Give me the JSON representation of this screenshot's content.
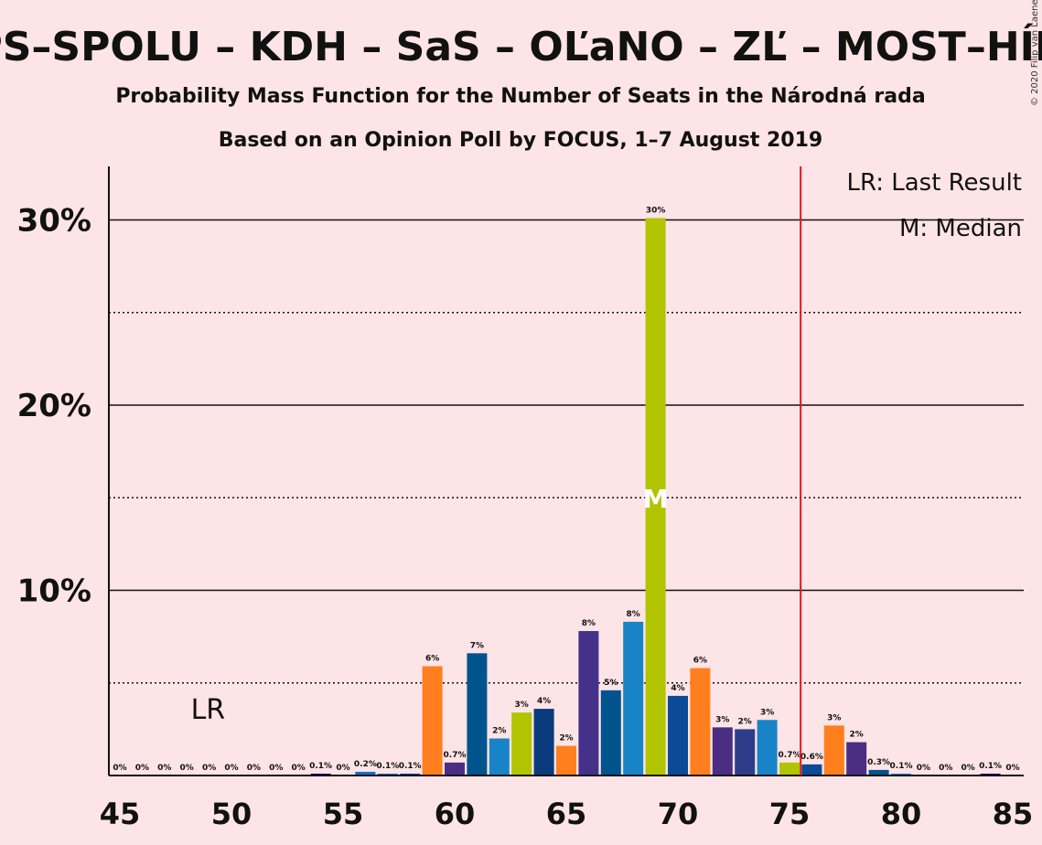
{
  "title": "PS–SPOLU – KDH – SaS – OĽaNO – ZĽ – MOST–HÍD",
  "subtitle1": "Probability Mass Function for the Number of Seats in the Národná rada",
  "subtitle2": "Based on an Opinion Poll by FOCUS, 1–7 August 2019",
  "copyright": "© 2020 Filip van Laenen",
  "legend": {
    "lr": "LR: Last Result",
    "median": "M: Median"
  },
  "lr_marker": "LR",
  "median_marker": "M",
  "chart_data": {
    "type": "bar",
    "x": [
      45,
      46,
      47,
      48,
      49,
      50,
      51,
      52,
      53,
      54,
      55,
      56,
      57,
      58,
      59,
      60,
      61,
      62,
      63,
      64,
      65,
      66,
      67,
      68,
      69,
      70,
      71,
      72,
      73,
      74,
      75,
      76,
      77,
      78,
      79,
      80,
      81,
      82,
      83,
      84,
      85
    ],
    "values": [
      0,
      0,
      0,
      0,
      0,
      0,
      0,
      0,
      0,
      0.1,
      0,
      0.2,
      0.1,
      0.1,
      5.9,
      0.7,
      6.6,
      2.0,
      3.4,
      3.6,
      1.6,
      7.8,
      4.6,
      8.3,
      30.1,
      4.3,
      5.8,
      2.6,
      2.5,
      3.0,
      0.7,
      0.6,
      2.7,
      1.8,
      0.3,
      0.1,
      0,
      0,
      0,
      0.1,
      0
    ],
    "labels": [
      "0%",
      "0%",
      "0%",
      "0%",
      "0%",
      "0%",
      "0%",
      "0%",
      "0%",
      "0.1%",
      "0%",
      "0.2%",
      "0.1%",
      "0.1%",
      "6%",
      "0.7%",
      "7%",
      "2%",
      "3%",
      "4%",
      "2%",
      "8%",
      "5%",
      "8%",
      "30%",
      "4%",
      "6%",
      "3%",
      "2%",
      "3%",
      "0.7%",
      "0.6%",
      "3%",
      "2%",
      "0.3%",
      "0.1%",
      "0%",
      "0%",
      "0%",
      "0.1%",
      "0%"
    ],
    "bar_colors": [
      "#0E0E7D",
      "#0E0E7D",
      "#0E0E7D",
      "#0E0E7D",
      "#0E0E7D",
      "#0E0E7D",
      "#0E0E7D",
      "#0E0E7D",
      "#0E0E7D",
      "#0E0E7D",
      "#0E0E7D",
      "#0F71C3",
      "#0F71C3",
      "#0F3F87",
      "#FF7F1E",
      "#4B2E83",
      "#00548E",
      "#1983C8",
      "#B0C500",
      "#0A3B7C",
      "#FF7F1E",
      "#44318A",
      "#00548E",
      "#1983C8",
      "#B0C500",
      "#0A4A96",
      "#FF7F1E",
      "#4B2E83",
      "#2E3D8A",
      "#1983C8",
      "#B0C500",
      "#0A4A96",
      "#FF7F1E",
      "#4B2E83",
      "#00548E",
      "#1983C8",
      "#0E0E7D",
      "#0E0E7D",
      "#0E0E7D",
      "#0E0E7D",
      "#0E0E7D"
    ],
    "xticks": [
      45,
      50,
      55,
      60,
      65,
      70,
      75,
      80,
      85
    ],
    "yticks": [
      {
        "value": 10,
        "label": "10%"
      },
      {
        "value": 20,
        "label": "20%"
      },
      {
        "value": 30,
        "label": "30%"
      }
    ],
    "ylim": [
      0,
      33
    ],
    "last_result_x": 49,
    "median_x": 69,
    "majority_line_x": 75.5,
    "majority_line_color": "#E0151F",
    "grid": "solid at 10/20/30%, dotted at 5/15/25%"
  }
}
